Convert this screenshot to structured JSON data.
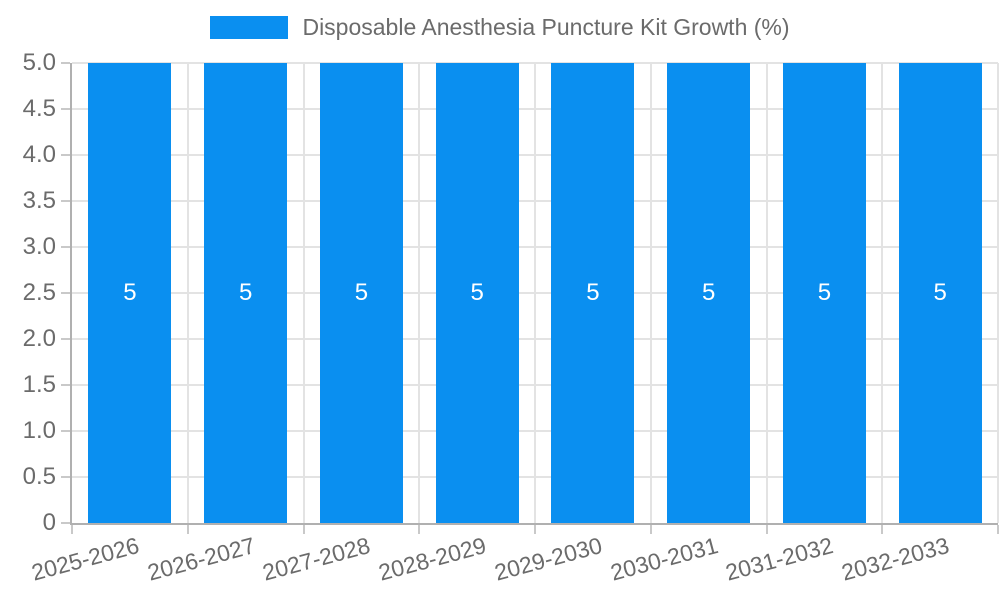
{
  "colors": {
    "bar": "#0a8ff0",
    "grid": "#e3e3e3",
    "axis": "#b0b0b0",
    "tick": "#c9c9c9",
    "text": "#6b6b6b",
    "value_label": "#ffffff",
    "background": "#ffffff"
  },
  "chart_data": {
    "type": "bar",
    "title": "Disposable Anesthesia Puncture Kit Growth (%)",
    "categories": [
      "2025-2026",
      "2026-2027",
      "2027-2028",
      "2028-2029",
      "2029-2030",
      "2030-2031",
      "2031-2032",
      "2032-2033"
    ],
    "values": [
      5,
      5,
      5,
      5,
      5,
      5,
      5,
      5
    ],
    "bar_value_labels": [
      "5",
      "5",
      "5",
      "5",
      "5",
      "5",
      "5",
      "5"
    ],
    "xlabel": "",
    "ylabel": "",
    "ylim": [
      0,
      5
    ],
    "ytick_labels": [
      "5.0",
      "4.5",
      "4.0",
      "3.5",
      "3.0",
      "2.5",
      "2.0",
      "1.5",
      "1.0",
      "0.5",
      "0"
    ],
    "grid": true,
    "legend_position": "top",
    "x_label_rotation_deg": -15
  }
}
